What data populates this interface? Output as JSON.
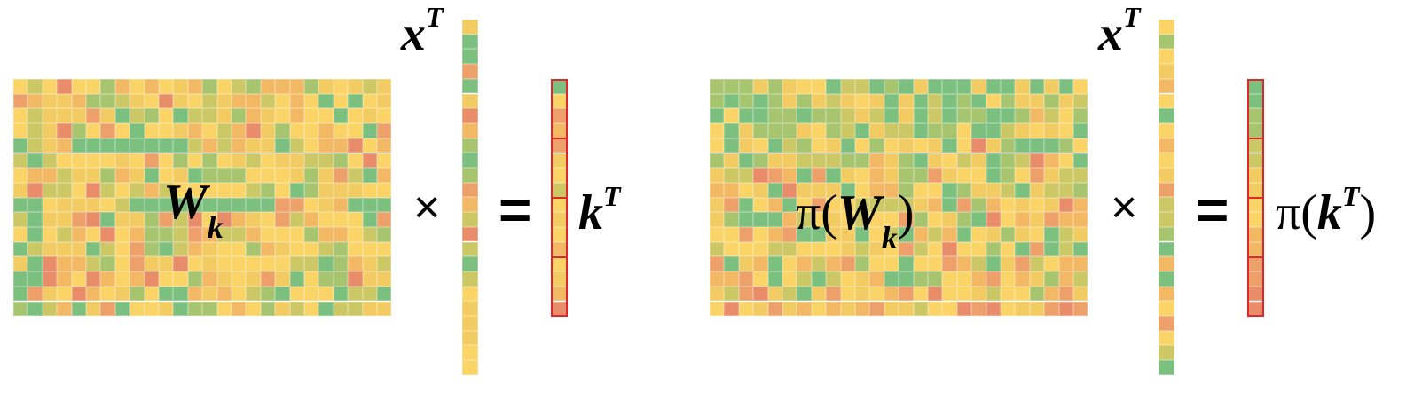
{
  "left": {
    "matrix_label": {
      "main": "W",
      "sub": "k"
    },
    "x_label": {
      "main": "x",
      "sup": "T"
    },
    "times": "×",
    "equals": "=",
    "result_label": {
      "main": "k",
      "sup": "T"
    }
  },
  "right": {
    "matrix_label": {
      "pre": "π(",
      "main": "W",
      "sub": "k",
      "post": ")"
    },
    "x_label": {
      "main": "x",
      "sup": "T"
    },
    "times": "×",
    "equals": "=",
    "result_label": {
      "pre": "π(",
      "main": "k",
      "sup": "T",
      "post": ")"
    }
  },
  "colors": {
    "palette": [
      "#7cc080",
      "#a7c56f",
      "#cdc866",
      "#f2cc62",
      "#fbd468",
      "#f3b863",
      "#eda06a",
      "#e88c6a"
    ],
    "highlight_border": "#e0282a"
  }
}
